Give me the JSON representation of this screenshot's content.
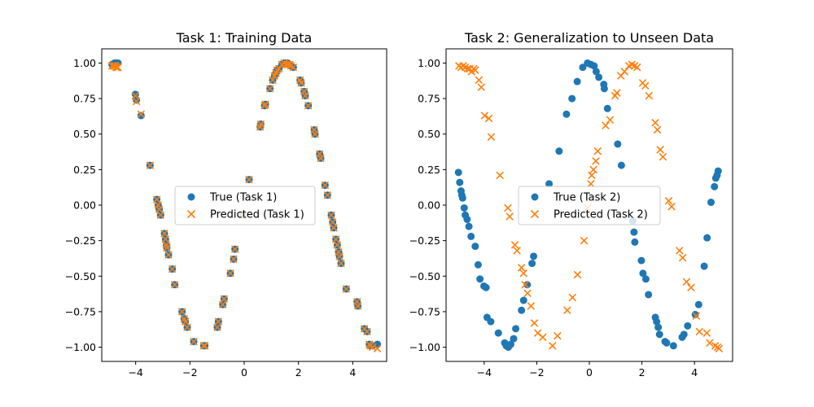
{
  "chart_data": [
    {
      "type": "scatter",
      "title": "Task 1: Training Data",
      "xlabel": "",
      "ylabel": "",
      "xlim": [
        -5.25,
        5.25
      ],
      "ylim": [
        -1.1,
        1.1
      ],
      "xticks": [
        -4,
        -2,
        0,
        2,
        4
      ],
      "xtick_labels": [
        "−4",
        "−2",
        "0",
        "2",
        "4"
      ],
      "yticks": [
        -1.0,
        -0.75,
        -0.5,
        -0.25,
        0.0,
        0.25,
        0.5,
        0.75,
        1.0
      ],
      "ytick_labels": [
        "−1.00",
        "−0.75",
        "−0.50",
        "−0.25",
        "0.00",
        "0.25",
        "0.50",
        "0.75",
        "1.00"
      ],
      "legend_position": "center-right",
      "series": [
        {
          "name": "True (Task 1)",
          "marker": "circle",
          "color": "#1f77b4",
          "x": [
            -4.87,
            -4.82,
            -4.78,
            -4.75,
            -4.72,
            -4.69,
            -4.65,
            -4.01,
            -3.97,
            -3.8,
            -3.47,
            -3.22,
            -3.17,
            -3.13,
            -3.08,
            -2.94,
            -2.9,
            -2.87,
            -2.85,
            -2.79,
            -2.65,
            -2.56,
            -2.29,
            -2.21,
            -2.17,
            -2.1,
            -1.86,
            -1.49,
            -1.45,
            -0.99,
            -0.95,
            -0.79,
            -0.74,
            -0.51,
            -0.39,
            -0.34,
            -0.07,
            0.18,
            0.59,
            0.61,
            0.75,
            0.78,
            0.95,
            1.05,
            1.12,
            1.17,
            1.21,
            1.28,
            1.39,
            1.47,
            1.53,
            1.6,
            1.67,
            1.72,
            1.81,
            2.06,
            2.1,
            2.21,
            2.25,
            2.36,
            2.58,
            2.61,
            2.78,
            2.82,
            2.98,
            3.07,
            3.21,
            3.26,
            3.3,
            3.38,
            3.43,
            3.48,
            3.51,
            3.57,
            3.76,
            4.16,
            4.19,
            4.43,
            4.53,
            4.61,
            4.65,
            4.73,
            4.91
          ],
          "y": [
            0.99,
            0.99,
            1.0,
            1.0,
            1.0,
            1.0,
            1.0,
            0.78,
            0.74,
            0.63,
            0.28,
            0.04,
            0.0,
            -0.03,
            -0.07,
            -0.2,
            -0.24,
            -0.28,
            -0.3,
            -0.35,
            -0.45,
            -0.56,
            -0.75,
            -0.8,
            -0.82,
            -0.86,
            -0.96,
            -0.99,
            -0.99,
            -0.86,
            -0.82,
            -0.7,
            -0.66,
            -0.48,
            -0.38,
            -0.31,
            -0.07,
            0.18,
            0.55,
            0.57,
            0.7,
            0.71,
            0.82,
            0.88,
            0.91,
            0.93,
            0.95,
            0.96,
            0.99,
            1.0,
            1.0,
            1.0,
            0.99,
            0.98,
            0.97,
            0.88,
            0.86,
            0.8,
            0.77,
            0.7,
            0.53,
            0.5,
            0.36,
            0.33,
            0.14,
            0.07,
            -0.07,
            -0.12,
            -0.16,
            -0.24,
            -0.28,
            -0.33,
            -0.36,
            -0.41,
            -0.59,
            -0.68,
            -0.71,
            -0.87,
            -0.89,
            -0.98,
            -0.99,
            -0.99,
            -0.98
          ]
        },
        {
          "name": "Predicted (Task 1)",
          "marker": "x",
          "color": "#ff7f0e",
          "x": [
            -4.87,
            -4.82,
            -4.78,
            -4.75,
            -4.72,
            -4.69,
            -4.65,
            -4.01,
            -3.97,
            -3.8,
            -3.47,
            -3.22,
            -3.17,
            -3.13,
            -3.08,
            -2.94,
            -2.9,
            -2.87,
            -2.85,
            -2.79,
            -2.65,
            -2.56,
            -2.29,
            -2.21,
            -2.17,
            -2.1,
            -1.86,
            -1.49,
            -1.45,
            -0.99,
            -0.95,
            -0.79,
            -0.74,
            -0.51,
            -0.39,
            -0.34,
            -0.07,
            0.18,
            0.59,
            0.61,
            0.75,
            0.78,
            0.95,
            1.05,
            1.12,
            1.17,
            1.21,
            1.28,
            1.39,
            1.47,
            1.53,
            1.6,
            1.67,
            1.72,
            1.81,
            2.06,
            2.1,
            2.21,
            2.25,
            2.36,
            2.58,
            2.61,
            2.78,
            2.82,
            2.98,
            3.07,
            3.21,
            3.26,
            3.3,
            3.38,
            3.43,
            3.48,
            3.51,
            3.57,
            3.76,
            4.16,
            4.19,
            4.43,
            4.53,
            4.61,
            4.65,
            4.73,
            4.91
          ],
          "y": [
            0.98,
            0.98,
            0.98,
            0.98,
            0.97,
            0.97,
            0.97,
            0.77,
            0.73,
            0.64,
            0.28,
            0.04,
            0.0,
            -0.03,
            -0.07,
            -0.2,
            -0.24,
            -0.28,
            -0.3,
            -0.35,
            -0.45,
            -0.56,
            -0.75,
            -0.8,
            -0.82,
            -0.86,
            -0.96,
            -0.99,
            -0.99,
            -0.86,
            -0.82,
            -0.7,
            -0.66,
            -0.48,
            -0.38,
            -0.31,
            -0.07,
            0.18,
            0.55,
            0.57,
            0.7,
            0.71,
            0.82,
            0.88,
            0.91,
            0.93,
            0.95,
            0.96,
            0.99,
            1.0,
            0.99,
            0.99,
            0.99,
            0.98,
            0.97,
            0.88,
            0.86,
            0.8,
            0.77,
            0.7,
            0.53,
            0.5,
            0.36,
            0.33,
            0.14,
            0.07,
            -0.07,
            -0.12,
            -0.16,
            -0.24,
            -0.28,
            -0.33,
            -0.36,
            -0.41,
            -0.59,
            -0.68,
            -0.71,
            -0.87,
            -0.89,
            -0.98,
            -0.99,
            -1.0,
            -1.01
          ]
        }
      ]
    },
    {
      "type": "scatter",
      "title": "Task 2: Generalization to Unseen Data",
      "xlabel": "",
      "ylabel": "",
      "xlim": [
        -5.45,
        5.45
      ],
      "ylim": [
        -1.1,
        1.1
      ],
      "xticks": [
        -4,
        -2,
        0,
        2,
        4
      ],
      "xtick_labels": [
        "−4",
        "−2",
        "0",
        "2",
        "4"
      ],
      "yticks": [
        -1.0,
        -0.75,
        -0.5,
        -0.25,
        0.0,
        0.25,
        0.5,
        0.75,
        1.0
      ],
      "ytick_labels": [
        "−1.00",
        "−0.75",
        "−0.50",
        "−0.25",
        "0.00",
        "0.25",
        "0.50",
        "0.75",
        "1.00"
      ],
      "legend_position": "center",
      "series": [
        {
          "name": "True (Task 2)",
          "marker": "circle",
          "color": "#1f77b4",
          "x": [
            -4.98,
            -4.93,
            -4.88,
            -4.85,
            -4.82,
            -4.76,
            -4.72,
            -4.65,
            -4.58,
            -4.5,
            -4.34,
            -4.23,
            -4.16,
            -4.01,
            -3.93,
            -3.89,
            -3.75,
            -3.46,
            -3.22,
            -3.16,
            -3.08,
            -2.99,
            -2.88,
            -2.8,
            -2.58,
            -2.5,
            -2.36,
            -2.18,
            -2.12,
            -1.53,
            -1.15,
            -0.87,
            -0.66,
            -0.46,
            -0.25,
            -0.07,
            0.06,
            0.18,
            0.26,
            0.36,
            0.55,
            0.57,
            0.69,
            1.08,
            1.22,
            1.65,
            1.7,
            1.73,
            1.98,
            2.04,
            2.15,
            2.25,
            2.51,
            2.56,
            2.62,
            2.67,
            2.88,
            2.94,
            3.2,
            3.53,
            3.6,
            3.74,
            4.03,
            4.16,
            4.37,
            4.48,
            4.63,
            4.76,
            4.81,
            4.86,
            4.9
          ],
          "y": [
            0.23,
            0.16,
            0.1,
            0.07,
            0.05,
            -0.02,
            -0.07,
            -0.1,
            -0.15,
            -0.22,
            -0.29,
            -0.42,
            -0.52,
            -0.57,
            -0.58,
            -0.79,
            -0.82,
            -0.9,
            -0.97,
            -0.99,
            -1.0,
            -0.98,
            -0.94,
            -0.87,
            -0.74,
            -0.67,
            -0.56,
            -0.41,
            -0.36,
            0.15,
            0.38,
            0.64,
            0.75,
            0.87,
            0.97,
            1.0,
            0.99,
            0.98,
            0.94,
            0.9,
            0.85,
            0.82,
            0.68,
            0.43,
            0.28,
            -0.11,
            -0.19,
            -0.26,
            -0.39,
            -0.48,
            -0.52,
            -0.63,
            -0.79,
            -0.82,
            -0.86,
            -0.91,
            -0.96,
            -0.97,
            -0.99,
            -0.93,
            -0.91,
            -0.85,
            -0.77,
            -0.7,
            -0.43,
            -0.23,
            0.02,
            0.13,
            0.19,
            0.21,
            0.24
          ]
        },
        {
          "name": "Predicted (Task 2)",
          "marker": "x",
          "color": "#ff7f0e",
          "x": [
            -4.96,
            -4.88,
            -4.8,
            -4.72,
            -4.63,
            -4.55,
            -4.48,
            -4.4,
            -4.34,
            -4.2,
            -4.11,
            -3.98,
            -3.82,
            -3.73,
            -3.4,
            -3.1,
            -3.03,
            -2.83,
            -2.75,
            -2.58,
            -2.5,
            -2.44,
            -2.35,
            -2.22,
            -2.09,
            -1.96,
            -1.77,
            -1.4,
            -1.21,
            -0.84,
            -0.64,
            -0.45,
            -0.2,
            -0.06,
            0.06,
            0.09,
            0.16,
            0.25,
            0.32,
            0.62,
            0.79,
            0.98,
            1.05,
            1.2,
            1.34,
            1.51,
            1.62,
            1.72,
            1.82,
            2.03,
            2.13,
            2.27,
            2.51,
            2.59,
            2.7,
            2.8,
            3.02,
            3.13,
            3.43,
            3.55,
            3.7,
            3.87,
            4.07,
            4.19,
            4.47,
            4.58,
            4.79,
            4.88,
            4.94
          ],
          "y": [
            0.98,
            0.97,
            0.98,
            0.97,
            0.96,
            0.96,
            0.94,
            0.96,
            0.95,
            0.88,
            0.83,
            0.63,
            0.61,
            0.48,
            0.21,
            -0.02,
            -0.08,
            -0.28,
            -0.32,
            -0.44,
            -0.48,
            -0.56,
            -0.62,
            -0.71,
            -0.83,
            -0.9,
            -0.93,
            -0.99,
            -0.92,
            -0.74,
            -0.65,
            -0.49,
            -0.25,
            -0.02,
            0.15,
            0.21,
            0.25,
            0.31,
            0.38,
            0.56,
            0.6,
            0.77,
            0.79,
            0.91,
            0.94,
            0.98,
            0.99,
            0.98,
            0.97,
            0.86,
            0.84,
            0.77,
            0.58,
            0.53,
            0.39,
            0.34,
            0.03,
            -0.01,
            -0.32,
            -0.37,
            -0.54,
            -0.58,
            -0.78,
            -0.89,
            -0.9,
            -0.97,
            -0.99,
            -1.0,
            -1.01
          ]
        }
      ]
    }
  ]
}
